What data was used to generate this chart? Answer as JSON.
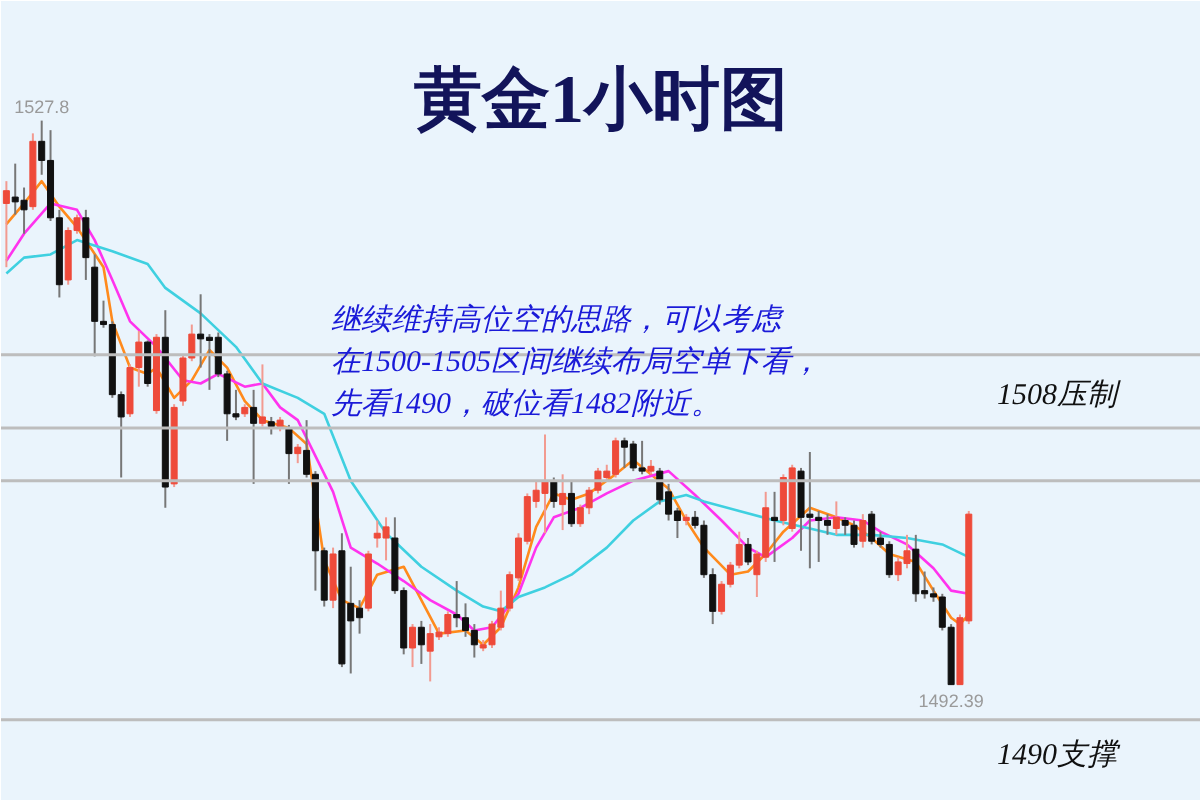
{
  "chart_data": {
    "type": "candlestick",
    "title": "黄金1小时图",
    "tick_labels": false,
    "categories": [
      null,
      null,
      null,
      null,
      null,
      null,
      null,
      null,
      null,
      null,
      null,
      null,
      null,
      null,
      null,
      null,
      null,
      null,
      null,
      null,
      null,
      null,
      null,
      null,
      null,
      null,
      null,
      null,
      null,
      null,
      null,
      null,
      null,
      null,
      null,
      null,
      null,
      null,
      null,
      null,
      null,
      null,
      null,
      null,
      null,
      null,
      null,
      null,
      null,
      null,
      null,
      null,
      null,
      null,
      null,
      null,
      null,
      null,
      null,
      null,
      null,
      null,
      null,
      null,
      null,
      null,
      null,
      null,
      null,
      null,
      null,
      null,
      null,
      null,
      null,
      null,
      null,
      null,
      null,
      null,
      null,
      null,
      null,
      null,
      null,
      null,
      null,
      null,
      null,
      null,
      null,
      null,
      null,
      null,
      null,
      null,
      null,
      null,
      null,
      null,
      null,
      null,
      null,
      null,
      null,
      null,
      null,
      null,
      null,
      null
    ],
    "ohlc": [
      [
        1522.6,
        1524.0,
        1518.6,
        1523.4
      ],
      [
        1523.0,
        1525.1,
        1521.9,
        1522.7
      ],
      [
        1522.8,
        1523.6,
        1520.7,
        1522.2
      ],
      [
        1522.4,
        1527.0,
        1522.2,
        1526.5
      ],
      [
        1526.5,
        1527.8,
        1524.4,
        1525.3
      ],
      [
        1525.3,
        1527.2,
        1521.5,
        1521.7
      ],
      [
        1521.7,
        1522.2,
        1516.7,
        1517.5
      ],
      [
        1517.8,
        1521.1,
        1517.5,
        1520.9
      ],
      [
        1520.9,
        1521.9,
        1520.7,
        1521.7
      ],
      [
        1521.7,
        1522.2,
        1517.8,
        1519.2
      ],
      [
        1518.6,
        1519.4,
        1513.0,
        1515.2
      ],
      [
        1515.2,
        1516.5,
        1514.8,
        1515.0
      ],
      [
        1515.0,
        1515.2,
        1510.4,
        1510.6
      ],
      [
        1510.6,
        1510.8,
        1505.4,
        1509.2
      ],
      [
        1509.4,
        1512.5,
        1509.2,
        1512.3
      ],
      [
        1512.3,
        1514.6,
        1511.1,
        1513.9
      ],
      [
        1513.9,
        1514.0,
        1511.1,
        1511.3
      ],
      [
        1509.6,
        1514.4,
        1509.4,
        1514.2
      ],
      [
        1514.2,
        1515.9,
        1503.5,
        1504.8
      ],
      [
        1505.0,
        1510.0,
        1504.8,
        1509.8
      ],
      [
        1510.2,
        1513.1,
        1509.9,
        1512.9
      ],
      [
        1512.9,
        1515.0,
        1512.7,
        1514.4
      ],
      [
        1514.4,
        1516.9,
        1512.3,
        1514.1
      ],
      [
        1514.2,
        1514.4,
        1510.9,
        1514.0
      ],
      [
        1514.2,
        1514.5,
        1511.7,
        1511.9
      ],
      [
        1511.9,
        1512.1,
        1507.7,
        1509.4
      ],
      [
        1509.4,
        1510.9,
        1509.0,
        1509.2
      ],
      [
        1509.4,
        1510.0,
        1509.2,
        1509.8
      ],
      [
        1509.8,
        1510.9,
        1505.0,
        1508.8
      ],
      [
        1508.8,
        1512.5,
        1508.6,
        1509.2
      ],
      [
        1508.9,
        1509.2,
        1508.1,
        1508.6
      ],
      [
        1508.6,
        1509.2,
        1508.3,
        1509.0
      ],
      [
        1508.5,
        1508.7,
        1505.0,
        1506.9
      ],
      [
        1506.9,
        1507.5,
        1506.3,
        1507.3
      ],
      [
        1507.1,
        1509.0,
        1505.4,
        1505.6
      ],
      [
        1505.6,
        1505.8,
        1498.3,
        1500.8
      ],
      [
        1500.8,
        1501.0,
        1497.3,
        1497.7
      ],
      [
        1497.7,
        1501.0,
        1497.2,
        1500.6
      ],
      [
        1500.8,
        1501.9,
        1493.5,
        1493.7
      ],
      [
        1497.5,
        1499.8,
        1493.1,
        1496.4
      ],
      [
        1497.2,
        1497.7,
        1495.6,
        1496.6
      ],
      [
        1497.2,
        1500.8,
        1497.0,
        1500.6
      ],
      [
        1501.6,
        1502.7,
        1501.0,
        1501.9
      ],
      [
        1501.6,
        1502.9,
        1500.2,
        1502.3
      ],
      [
        1501.6,
        1502.9,
        1498.1,
        1498.3
      ],
      [
        1498.3,
        1498.5,
        1494.3,
        1494.7
      ],
      [
        1494.7,
        1496.2,
        1493.5,
        1496.0
      ],
      [
        1496.0,
        1496.4,
        1493.7,
        1494.9
      ],
      [
        1494.5,
        1496.2,
        1492.6,
        1495.6
      ],
      [
        1495.4,
        1496.0,
        1495.2,
        1495.7
      ],
      [
        1495.6,
        1497.0,
        1495.4,
        1496.8
      ],
      [
        1496.8,
        1498.9,
        1496.0,
        1496.6
      ],
      [
        1496.6,
        1497.5,
        1495.4,
        1495.8
      ],
      [
        1495.8,
        1496.2,
        1494.1,
        1494.9
      ],
      [
        1494.7,
        1495.2,
        1494.5,
        1494.9
      ],
      [
        1494.9,
        1496.4,
        1494.7,
        1496.2
      ],
      [
        1496.0,
        1498.3,
        1495.8,
        1497.2
      ],
      [
        1497.2,
        1499.5,
        1497.0,
        1499.3
      ],
      [
        1499.1,
        1501.9,
        1498.9,
        1501.6
      ],
      [
        1501.4,
        1504.4,
        1501.2,
        1504.2
      ],
      [
        1503.9,
        1505.2,
        1503.5,
        1504.6
      ],
      [
        1504.4,
        1508.1,
        1501.9,
        1505.2
      ],
      [
        1505.2,
        1505.4,
        1503.5,
        1503.9
      ],
      [
        1503.7,
        1505.6,
        1502.1,
        1504.4
      ],
      [
        1504.4,
        1505.2,
        1502.3,
        1502.5
      ],
      [
        1502.5,
        1503.7,
        1502.3,
        1503.5
      ],
      [
        1503.5,
        1504.8,
        1503.1,
        1504.6
      ],
      [
        1504.6,
        1506.0,
        1504.4,
        1505.8
      ],
      [
        1505.4,
        1506.2,
        1505.2,
        1505.8
      ],
      [
        1505.6,
        1507.9,
        1505.4,
        1507.7
      ],
      [
        1507.7,
        1507.9,
        1506.0,
        1507.3
      ],
      [
        1507.5,
        1507.7,
        1505.8,
        1506.0
      ],
      [
        1506.0,
        1507.7,
        1505.6,
        1505.8
      ],
      [
        1505.8,
        1506.5,
        1505.6,
        1506.1
      ],
      [
        1505.8,
        1506.0,
        1503.7,
        1504.0
      ],
      [
        1504.5,
        1505.0,
        1502.7,
        1503.1
      ],
      [
        1503.3,
        1503.5,
        1501.6,
        1502.7
      ],
      [
        1502.7,
        1503.1,
        1502.4,
        1502.9
      ],
      [
        1502.9,
        1503.3,
        1502.2,
        1502.4
      ],
      [
        1502.4,
        1502.7,
        1499.1,
        1499.3
      ],
      [
        1499.3,
        1499.7,
        1496.2,
        1497.0
      ],
      [
        1497.0,
        1498.9,
        1496.8,
        1498.7
      ],
      [
        1498.7,
        1500.1,
        1498.5,
        1499.9
      ],
      [
        1499.9,
        1502.0,
        1499.7,
        1501.2
      ],
      [
        1501.2,
        1501.6,
        1499.9,
        1500.1
      ],
      [
        1499.3,
        1500.8,
        1497.9,
        1500.6
      ],
      [
        1500.4,
        1504.5,
        1500.1,
        1503.5
      ],
      [
        1502.9,
        1504.5,
        1500.1,
        1502.7
      ],
      [
        1502.7,
        1505.6,
        1502.4,
        1505.4
      ],
      [
        1502.2,
        1506.2,
        1502.0,
        1506.0
      ],
      [
        1505.8,
        1506.0,
        1500.8,
        1502.9
      ],
      [
        1503.1,
        1507.0,
        1499.7,
        1502.9
      ],
      [
        1502.9,
        1503.3,
        1500.1,
        1502.7
      ],
      [
        1502.7,
        1503.1,
        1501.8,
        1502.4
      ],
      [
        1502.2,
        1503.9,
        1501.8,
        1502.9
      ],
      [
        1502.7,
        1502.9,
        1501.8,
        1502.4
      ],
      [
        1502.4,
        1502.7,
        1501.0,
        1501.2
      ],
      [
        1501.4,
        1503.1,
        1501.0,
        1502.7
      ],
      [
        1503.1,
        1503.3,
        1501.2,
        1501.4
      ],
      [
        1501.6,
        1502.0,
        1501.0,
        1501.2
      ],
      [
        1501.2,
        1501.4,
        1499.1,
        1499.3
      ],
      [
        1499.3,
        1500.4,
        1498.9,
        1500.1
      ],
      [
        1500.0,
        1501.8,
        1499.7,
        1500.8
      ],
      [
        1500.9,
        1501.8,
        1497.6,
        1498.1
      ],
      [
        1498.3,
        1499.5,
        1497.8,
        1498.1
      ],
      [
        1498.1,
        1498.5,
        1497.6,
        1497.9
      ],
      [
        1497.9,
        1498.1,
        1495.8,
        1496.0
      ],
      [
        1496.0,
        1496.2,
        1492.39,
        1492.4
      ],
      [
        1492.4,
        1496.8,
        1492.4,
        1496.6
      ],
      [
        1496.4,
        1503.3,
        1496.2,
        1503.1
      ]
    ],
    "series": [
      {
        "type": "line",
        "color": "#ff8a1c",
        "values": [
          1521.3,
          null,
          1522.6,
          null,
          1524.0,
          null,
          1522.4,
          null,
          1521.1,
          null,
          null,
          1518.6,
          1515.2,
          null,
          1512.3,
          null,
          1511.9,
          1512.3,
          null,
          1510.4,
          null,
          1511.5,
          null,
          1513.4,
          null,
          1512.3,
          null,
          1510.2,
          null,
          1509.0,
          null,
          null,
          1508.5,
          null,
          1507.5,
          null,
          1500.2,
          null,
          1497.7,
          null,
          1497.2,
          null,
          1499.3,
          null,
          null,
          1499.8,
          null,
          1497.7,
          null,
          1495.6,
          null,
          null,
          1495.8,
          null,
          1494.9,
          null,
          1496.0,
          null,
          1498.5,
          null,
          1502.3,
          null,
          1504.4,
          null,
          1504.0,
          null,
          1504.4,
          null,
          null,
          1505.6,
          null,
          1506.5,
          null,
          null,
          null,
          1504.7,
          null,
          1502.7,
          null,
          1501.0,
          null,
          null,
          1499.3,
          null,
          1499.5,
          null,
          1500.6,
          null,
          1502.0,
          null,
          null,
          1503.5,
          null,
          null,
          1502.9,
          null,
          1502.4,
          null,
          1501.6,
          null,
          1500.6,
          null,
          null,
          1500.1,
          null,
          1498.3,
          null,
          1496.6,
          1496.2,
          1496.8
        ]
      },
      {
        "type": "line",
        "color": "#ff33ee",
        "values": [
          1519.0,
          null,
          1520.7,
          null,
          null,
          1522.6,
          null,
          null,
          1522.2,
          null,
          1520.3,
          null,
          1517.8,
          null,
          1515.2,
          null,
          null,
          1513.6,
          null,
          null,
          1511.5,
          null,
          1511.3,
          null,
          1511.9,
          null,
          null,
          1511.1,
          null,
          1511.3,
          null,
          1509.8,
          null,
          1509.0,
          null,
          null,
          null,
          1504.5,
          null,
          1501.0,
          null,
          null,
          1500.0,
          null,
          null,
          1498.9,
          null,
          null,
          1497.7,
          null,
          null,
          1496.8,
          null,
          1495.8,
          null,
          1496.0,
          null,
          null,
          1498.1,
          null,
          1501.0,
          null,
          1502.9,
          null,
          null,
          1503.5,
          null,
          null,
          1504.4,
          null,
          null,
          1505.2,
          null,
          null,
          null,
          1505.8,
          null,
          null,
          1504.3,
          null,
          null,
          1502.7,
          null,
          null,
          1501.0,
          null,
          1500.4,
          null,
          null,
          1501.6,
          null,
          1502.7,
          null,
          null,
          1502.9,
          null,
          null,
          1502.7,
          null,
          1502.0,
          null,
          null,
          1501.2,
          null,
          null,
          1499.7,
          null,
          1498.3,
          null,
          1498.1
        ]
      },
      {
        "type": "line",
        "color": "#3fd0e0",
        "values": [
          1518.2,
          null,
          1519.2,
          null,
          null,
          1519.4,
          null,
          null,
          1520.3,
          null,
          null,
          null,
          1519.6,
          null,
          null,
          null,
          1518.8,
          null,
          1517.3,
          null,
          null,
          null,
          1515.7,
          null,
          null,
          null,
          1513.6,
          null,
          null,
          1511.3,
          null,
          null,
          null,
          1510.4,
          null,
          null,
          1509.4,
          null,
          null,
          1505.2,
          null,
          null,
          null,
          1501.9,
          null,
          null,
          null,
          1499.8,
          null,
          null,
          null,
          1498.3,
          null,
          null,
          1497.3,
          null,
          1497.0,
          null,
          1497.9,
          null,
          null,
          1498.5,
          null,
          null,
          1499.3,
          null,
          null,
          null,
          1501.0,
          null,
          null,
          1502.7,
          null,
          null,
          1503.9,
          null,
          null,
          1504.3,
          null,
          1503.9,
          null,
          null,
          null,
          1503.3,
          null,
          null,
          null,
          1502.7,
          null,
          null,
          null,
          1502.2,
          null,
          null,
          1501.8,
          null,
          null,
          null,
          1501.8,
          null,
          null,
          null,
          1501.6,
          null,
          null,
          null,
          1501.2,
          null,
          null,
          1500.4
        ]
      }
    ],
    "ref_lines": [
      {
        "axis": "y",
        "value": 1513.1,
        "color": "#bdbdbd"
      },
      {
        "axis": "y",
        "value": 1508.5,
        "label": "1508压制",
        "color": "#bdbdbd"
      },
      {
        "axis": "y",
        "value": 1505.2,
        "color": "#bdbdbd"
      },
      {
        "axis": "y",
        "value": 1490.2,
        "label": "1490支撑",
        "color": "#bdbdbd"
      }
    ],
    "annotations": [
      "继续维持高位空的思路，可以考虑",
      "在1500-1505区间继续布局空单下看，",
      "先看1490，破位看1482附近。",
      {
        "text": "1527.8",
        "y": 1527.8
      },
      {
        "text": "1492.39",
        "y": 1492.39
      }
    ]
  }
}
